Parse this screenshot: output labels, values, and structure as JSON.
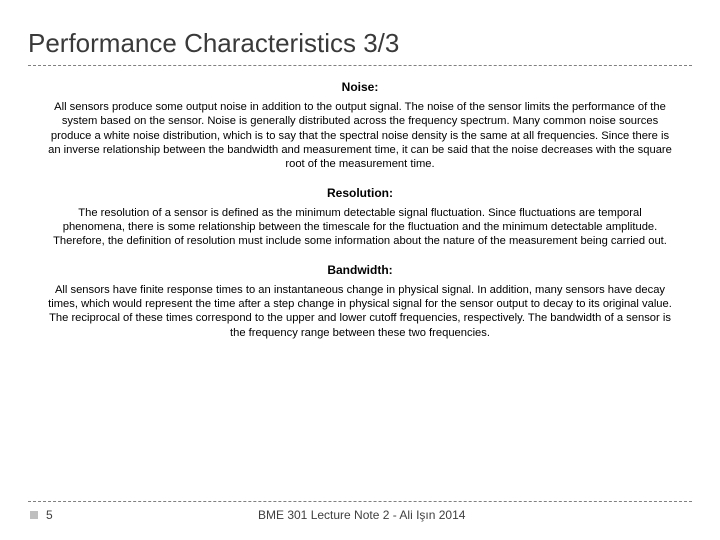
{
  "title": "Performance Characteristics 3/3",
  "sections": [
    {
      "heading": "Noise:",
      "body": "All sensors produce some output noise in addition to the output signal. The noise of the sensor limits the performance of the system based on the sensor. Noise is generally distributed across the frequency spectrum. Many common noise sources produce a white noise distribution, which is to say that the spectral noise density is the same at all frequencies. Since there is an inverse relationship between the bandwidth and measurement time, it can be said that the noise decreases with the square root of the measurement time."
    },
    {
      "heading": "Resolution:",
      "body": "The resolution of a sensor is defined as the minimum detectable signal fluctuation. Since fluctuations are temporal phenomena, there is some relationship between the timescale for the fluctuation and the minimum detectable amplitude. Therefore, the definition of resolution must include some information about the nature of the measurement being carried out."
    },
    {
      "heading": "Bandwidth:",
      "body": "All sensors have finite response times to an instantaneous change in physical signal. In addition, many sensors have decay times, which would represent the time after a step change in physical signal for the sensor output to decay to its original value. The reciprocal of these times correspond to the upper and lower cutoff frequencies, respectively. The bandwidth of a sensor is the frequency range between these two frequencies."
    }
  ],
  "footer": {
    "page_number": "5",
    "note": "BME 301 Lecture Note 2 - Ali Işın 2014"
  },
  "colors": {
    "title": "#3a3a3a",
    "text": "#000000",
    "dash": "#808080",
    "footer_text": "#404040",
    "bullet": "#bfbfbf",
    "background": "#ffffff"
  }
}
